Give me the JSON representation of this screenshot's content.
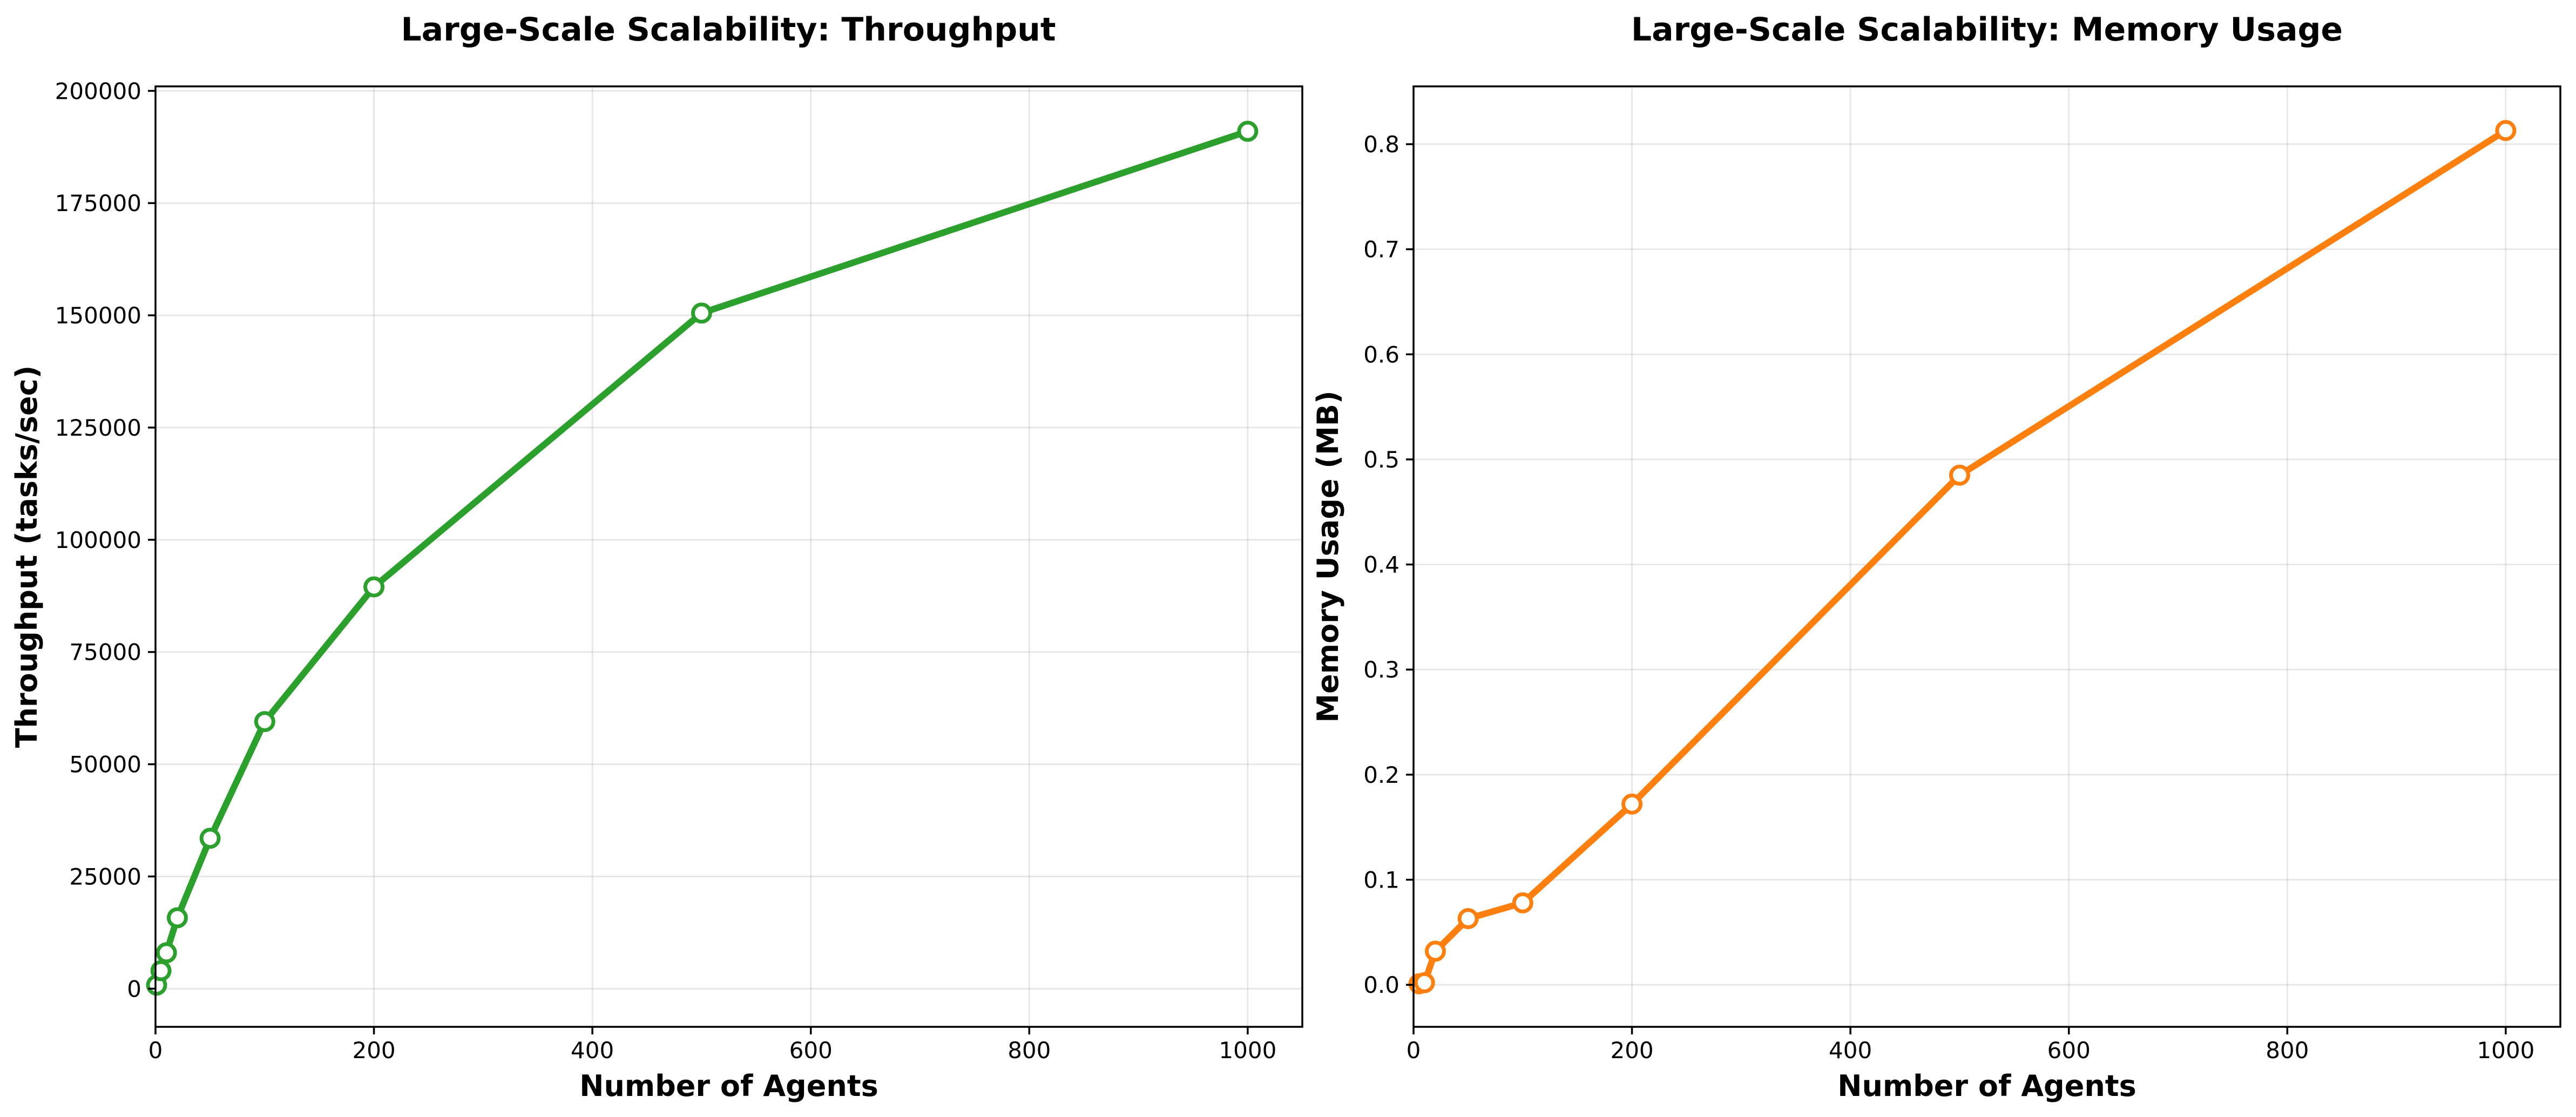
{
  "colors": {
    "throughput": "#2ca02c",
    "memory": "#ff7f0e"
  },
  "chart_data": [
    {
      "type": "line",
      "title": "Large-Scale Scalability: Throughput",
      "xlabel": "Number of Agents",
      "ylabel": "Throughput (tasks/sec)",
      "xlim": [
        0,
        1050
      ],
      "ylim": [
        -8500,
        201000
      ],
      "xticks": [
        0,
        200,
        400,
        600,
        800,
        1000
      ],
      "yticks": [
        0,
        25000,
        50000,
        75000,
        100000,
        125000,
        150000,
        175000,
        200000
      ],
      "grid": true,
      "series": [
        {
          "color": "#2ca02c",
          "marker": "hollow-circle",
          "x": [
            1,
            5,
            10,
            20,
            50,
            100,
            200,
            500,
            1000
          ],
          "y": [
            800,
            4000,
            8000,
            15800,
            33500,
            59500,
            89500,
            150500,
            191000
          ]
        }
      ]
    },
    {
      "type": "line",
      "title": "Large-Scale Scalability: Memory Usage",
      "xlabel": "Number of Agents",
      "ylabel": "Memory Usage (MB)",
      "xlim": [
        0,
        1050
      ],
      "ylim": [
        -0.04,
        0.855
      ],
      "xticks": [
        0,
        200,
        400,
        600,
        800,
        1000
      ],
      "yticks": [
        0.0,
        0.1,
        0.2,
        0.3,
        0.4,
        0.5,
        0.6,
        0.7,
        0.8
      ],
      "grid": true,
      "series": [
        {
          "color": "#ff7f0e",
          "marker": "hollow-circle",
          "x": [
            5,
            10,
            20,
            50,
            100,
            200,
            500,
            1000
          ],
          "y": [
            0.001,
            0.002,
            0.032,
            0.063,
            0.078,
            0.172,
            0.485,
            0.813
          ]
        }
      ]
    }
  ]
}
